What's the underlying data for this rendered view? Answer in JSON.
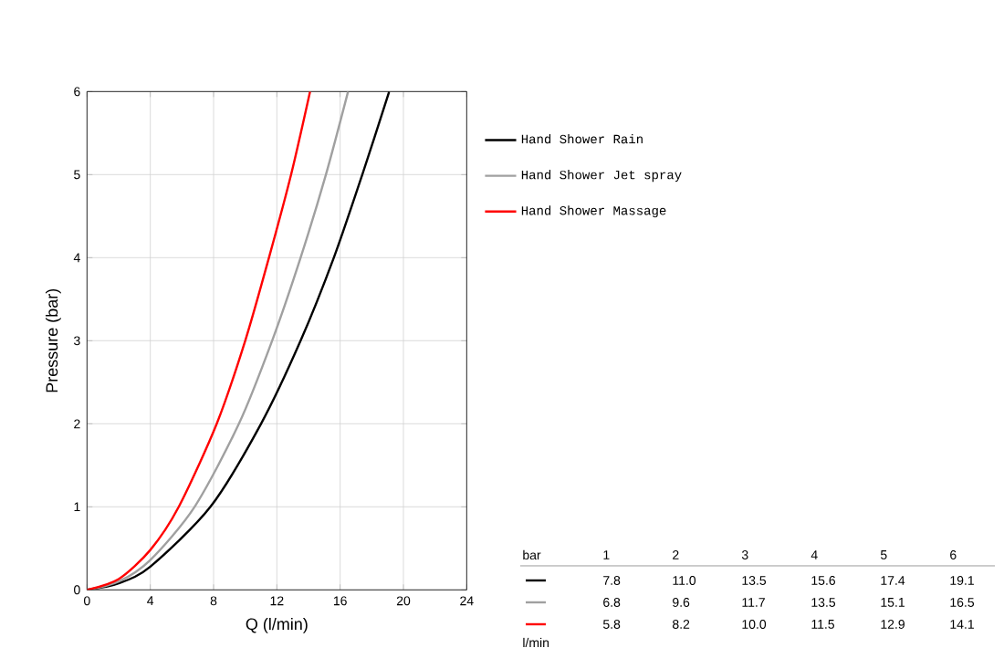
{
  "chart_data": {
    "type": "line",
    "xlabel": "Q (l/min)",
    "ylabel": "Pressure (bar)",
    "xlim": [
      0,
      24
    ],
    "ylim": [
      0,
      6
    ],
    "xticks": [
      0,
      4,
      8,
      12,
      16,
      20,
      24
    ],
    "yticks": [
      0,
      1,
      2,
      3,
      4,
      5,
      6
    ],
    "grid": true,
    "legend": "right",
    "marker": "none",
    "line_style": "solid",
    "series": [
      {
        "name": "Hand Shower Rain",
        "color": "#000000",
        "x": [
          0,
          2,
          4,
          7.8,
          11.0,
          13.5,
          15.6,
          17.4,
          19.1
        ],
        "values": [
          0,
          0.08,
          0.28,
          1,
          2,
          3,
          4,
          5,
          6
        ]
      },
      {
        "name": "Hand Shower Jet spray",
        "color": "#a0a0a0",
        "x": [
          0,
          2,
          4,
          6.8,
          9.6,
          11.7,
          13.5,
          15.1,
          16.5
        ],
        "values": [
          0,
          0.1,
          0.36,
          1,
          2,
          3,
          4,
          5,
          6
        ]
      },
      {
        "name": "Hand Shower Massage",
        "color": "#ff0000",
        "x": [
          0,
          2,
          4,
          5.8,
          8.2,
          10.0,
          11.5,
          12.9,
          14.1
        ],
        "values": [
          0,
          0.13,
          0.48,
          1,
          2,
          3,
          4,
          5,
          6
        ]
      }
    ],
    "annotations": [
      "bar",
      "l/min",
      "1",
      "2",
      "3",
      "4",
      "5",
      "6",
      "7.8",
      "11.0",
      "13.5",
      "15.6",
      "17.4",
      "19.1",
      "6.8",
      "9.6",
      "11.7",
      "13.5",
      "15.1",
      "16.5",
      "5.8",
      "8.2",
      "10.0",
      "11.5",
      "12.9",
      "14.1"
    ]
  }
}
